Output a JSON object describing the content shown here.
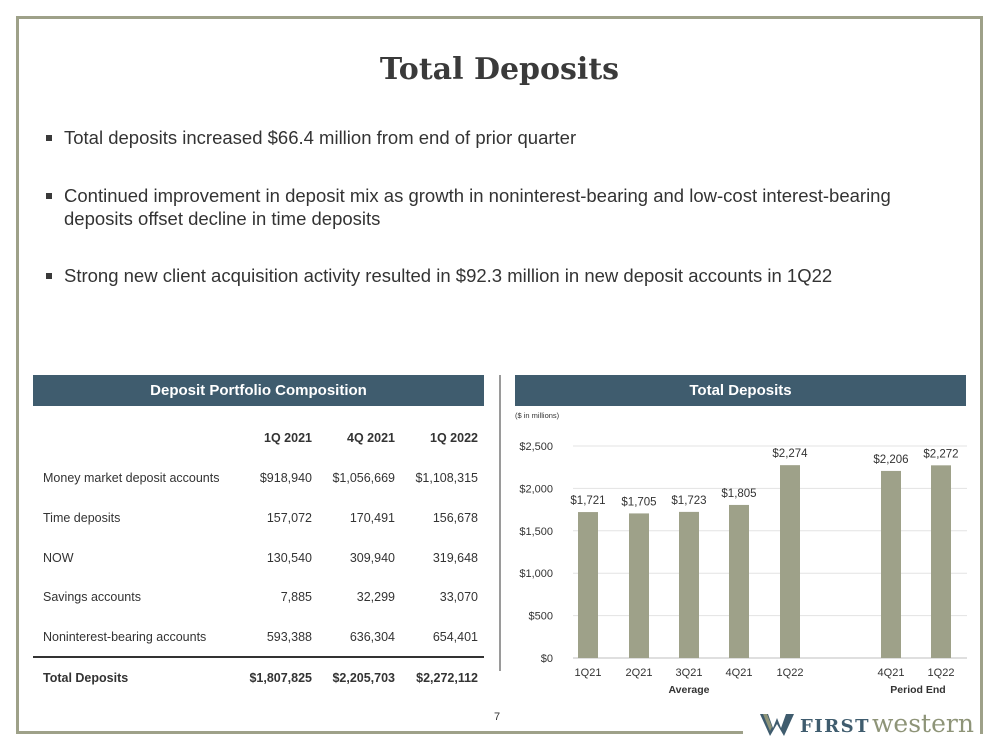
{
  "title": "Total Deposits",
  "bullets": [
    "Total deposits increased $66.4 million from end of prior quarter",
    "Continued improvement in deposit mix as growth in noninterest-bearing and low-cost interest-bearing deposits offset decline in time deposits",
    "Strong new client acquisition activity resulted in $92.3 million in new deposit accounts in 1Q22"
  ],
  "table": {
    "header": "Deposit Portfolio Composition",
    "columns": [
      "1Q 2021",
      "4Q 2021",
      "1Q 2022"
    ],
    "rows": [
      {
        "label": "Money market deposit accounts",
        "values": [
          "$918,940",
          "$1,056,669",
          "$1,108,315"
        ]
      },
      {
        "label": "Time deposits",
        "values": [
          "157,072",
          "170,491",
          "156,678"
        ]
      },
      {
        "label": "NOW",
        "values": [
          "130,540",
          "309,940",
          "319,648"
        ]
      },
      {
        "label": "Savings accounts",
        "values": [
          "7,885",
          "32,299",
          "33,070"
        ]
      },
      {
        "label": "Noninterest-bearing accounts",
        "values": [
          "593,388",
          "636,304",
          "654,401"
        ]
      }
    ],
    "total": {
      "label": "Total Deposits",
      "values": [
        "$1,807,825",
        "$2,205,703",
        "$2,272,112"
      ]
    }
  },
  "chart_header": "Total Deposits",
  "units_note": "($ in millions)",
  "chart_data": {
    "type": "bar",
    "title": "Total Deposits",
    "categories": [
      "1Q21",
      "2Q21",
      "3Q21",
      "4Q21",
      "1Q22",
      "4Q21",
      "1Q22"
    ],
    "values": [
      1721,
      1705,
      1723,
      1805,
      2274,
      2206,
      2272
    ],
    "data_labels": [
      "$1,721",
      "$1,705",
      "$1,723",
      "$1,805",
      "$2,274",
      "$2,206",
      "$2,272"
    ],
    "groups": [
      {
        "label": "Average",
        "categories": [
          "1Q21",
          "2Q21",
          "3Q21",
          "4Q21",
          "1Q22"
        ]
      },
      {
        "label": "Period End",
        "categories": [
          "4Q21",
          "1Q22"
        ]
      }
    ],
    "ylim": [
      0,
      2500
    ],
    "yticks": [
      0,
      500,
      1000,
      1500,
      2000,
      2500
    ],
    "ytick_labels": [
      "$0",
      "$500",
      "$1,000",
      "$1,500",
      "$2,000",
      "$2,500"
    ],
    "grid": true,
    "bar_color": "#9ea189"
  },
  "page_number": "7",
  "logo": {
    "first": "FIRST",
    "western": "western"
  },
  "colors": {
    "header_bg": "#3f5c6e",
    "frame": "#9ea189",
    "bar": "#9ea189"
  }
}
